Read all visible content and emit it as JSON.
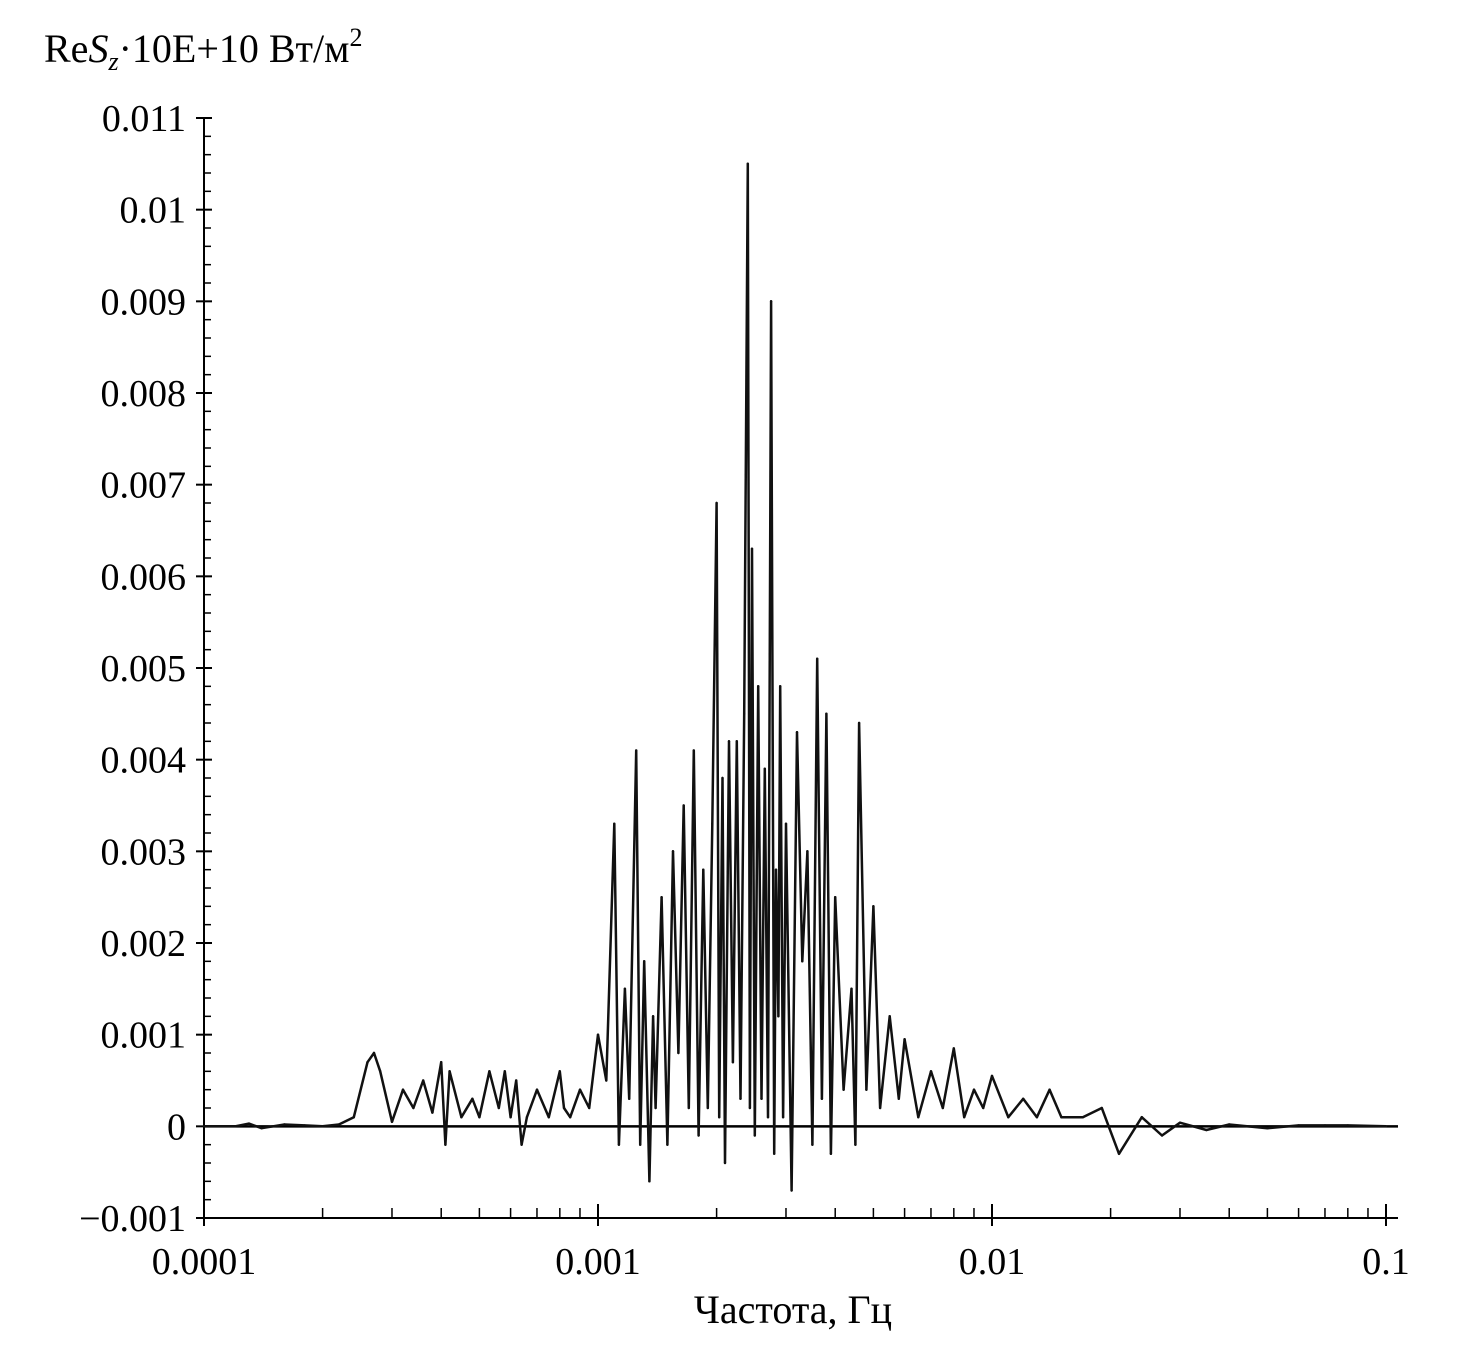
{
  "chart_data": {
    "type": "line",
    "title": "",
    "ylabel": {
      "re": "Re",
      "s": "S",
      "sub": "z",
      "rest": "·10E+10 Вт/м",
      "sup": "2"
    },
    "xlabel": "Частота, Гц",
    "x_scale": "log",
    "xlim": [
      0.0001,
      0.1
    ],
    "ylim": [
      -0.001,
      0.011
    ],
    "x_ticks": [
      {
        "value": 0.0001,
        "label": "0.0001"
      },
      {
        "value": 0.001,
        "label": "0.001"
      },
      {
        "value": 0.01,
        "label": "0.01"
      },
      {
        "value": 0.1,
        "label": "0.1"
      }
    ],
    "y_ticks": [
      {
        "value": -0.001,
        "label": "−0.001"
      },
      {
        "value": 0,
        "label": "0"
      },
      {
        "value": 0.001,
        "label": "0.001"
      },
      {
        "value": 0.002,
        "label": "0.002"
      },
      {
        "value": 0.003,
        "label": "0.003"
      },
      {
        "value": 0.004,
        "label": "0.004"
      },
      {
        "value": 0.005,
        "label": "0.005"
      },
      {
        "value": 0.006,
        "label": "0.006"
      },
      {
        "value": 0.007,
        "label": "0.007"
      },
      {
        "value": 0.008,
        "label": "0.008"
      },
      {
        "value": 0.009,
        "label": "0.009"
      },
      {
        "value": 0.01,
        "label": "0.01"
      },
      {
        "value": 0.011,
        "label": "0.011"
      }
    ],
    "grid": false,
    "series": [
      {
        "color": "#111111",
        "x": [
          0.0001,
          0.00012,
          0.00013,
          0.00014,
          0.00016,
          0.00018,
          0.0002,
          0.00022,
          0.00024,
          0.00026,
          0.00027,
          0.00028,
          0.0003,
          0.00032,
          0.00034,
          0.00036,
          0.00038,
          0.0004,
          0.00041,
          0.00042,
          0.00045,
          0.00048,
          0.0005,
          0.00053,
          0.00056,
          0.00058,
          0.0006,
          0.00062,
          0.00064,
          0.00066,
          0.0007,
          0.00075,
          0.0008,
          0.00082,
          0.00085,
          0.0009,
          0.00095,
          0.001,
          0.00105,
          0.0011,
          0.00113,
          0.00117,
          0.0012,
          0.00125,
          0.00128,
          0.00131,
          0.00135,
          0.00138,
          0.0014,
          0.00145,
          0.0015,
          0.00155,
          0.0016,
          0.00165,
          0.0017,
          0.00175,
          0.0018,
          0.00185,
          0.0019,
          0.00195,
          0.002,
          0.00203,
          0.00207,
          0.0021,
          0.00215,
          0.0022,
          0.00225,
          0.0023,
          0.00235,
          0.0024,
          0.00243,
          0.00246,
          0.0025,
          0.00255,
          0.0026,
          0.00265,
          0.0027,
          0.00275,
          0.0028,
          0.00283,
          0.00287,
          0.0029,
          0.00295,
          0.003,
          0.0031,
          0.0032,
          0.0033,
          0.0034,
          0.0035,
          0.0036,
          0.0037,
          0.0038,
          0.0039,
          0.004,
          0.0042,
          0.0044,
          0.0045,
          0.0046,
          0.0048,
          0.005,
          0.0052,
          0.0055,
          0.0058,
          0.006,
          0.0065,
          0.007,
          0.0075,
          0.008,
          0.0085,
          0.009,
          0.0095,
          0.01,
          0.011,
          0.012,
          0.013,
          0.014,
          0.015,
          0.017,
          0.019,
          0.021,
          0.024,
          0.027,
          0.03,
          0.035,
          0.04,
          0.05,
          0.06,
          0.07,
          0.08,
          0.1
        ],
        "y": [
          0,
          0,
          3e-05,
          -2e-05,
          2e-05,
          1e-05,
          0,
          2e-05,
          0.0001,
          0.0007,
          0.0008,
          0.0006,
          5e-05,
          0.0004,
          0.0002,
          0.0005,
          0.00015,
          0.0007,
          -0.0002,
          0.0006,
          0.0001,
          0.0003,
          0.0001,
          0.0006,
          0.0002,
          0.0006,
          0.0001,
          0.0005,
          -0.0002,
          0.0001,
          0.0004,
          0.0001,
          0.0006,
          0.0002,
          0.0001,
          0.0004,
          0.0002,
          0.001,
          0.0005,
          0.0033,
          -0.0002,
          0.0015,
          0.0003,
          0.0041,
          -0.0002,
          0.0018,
          -0.0006,
          0.0012,
          0.0002,
          0.0025,
          -0.0002,
          0.003,
          0.0008,
          0.0035,
          0.0002,
          0.0041,
          -0.0001,
          0.0028,
          0.0002,
          0.0033,
          0.0068,
          0.0001,
          0.0038,
          -0.0004,
          0.0042,
          0.0007,
          0.0042,
          0.0003,
          0.0045,
          0.0105,
          0.0002,
          0.0063,
          -0.0001,
          0.0048,
          0.0003,
          0.0039,
          0.0001,
          0.009,
          -0.0003,
          0.0028,
          0.0012,
          0.0048,
          0.0001,
          0.0033,
          -0.0007,
          0.0043,
          0.0018,
          0.003,
          -0.0002,
          0.0051,
          0.0003,
          0.0045,
          -0.0003,
          0.0025,
          0.0004,
          0.0015,
          -0.0002,
          0.0044,
          0.0004,
          0.0024,
          0.0002,
          0.0012,
          0.0003,
          0.00095,
          0.0001,
          0.0006,
          0.0002,
          0.00085,
          0.0001,
          0.0004,
          0.0002,
          0.00055,
          0.0001,
          0.0003,
          0.0001,
          0.0004,
          0.0001,
          0.0001,
          0.0002,
          -0.0003,
          0.0001,
          -0.0001,
          4e-05,
          -4e-05,
          2e-05,
          -2e-05,
          1e-05,
          1e-05,
          1e-05,
          0
        ]
      }
    ]
  }
}
